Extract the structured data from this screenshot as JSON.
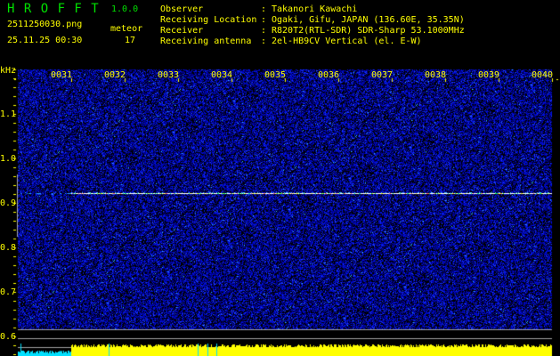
{
  "app": {
    "title": "H R O F F T",
    "version": "1.0.0"
  },
  "file": {
    "name": "2511250030.png",
    "datetime": "25.11.25 00:30"
  },
  "meteor": {
    "label": "meteor",
    "count": "17"
  },
  "info": [
    {
      "label": "Observer",
      "value": "Takanori Kawachi"
    },
    {
      "label": "Receiving Location",
      "value": "Ogaki, Gifu, JAPAN (136.60E, 35.35N)"
    },
    {
      "label": "Receiver",
      "value": "R820T2(RTL-SDR) SDR-Sharp 53.1000MHz"
    },
    {
      "label": "Receiving antenna",
      "value": "2el-HB9CV Vertical (el. E-W)"
    }
  ],
  "info_sep": ":",
  "y_axis": {
    "unit": "kHz",
    "ticks": [
      "1.1",
      "1.0",
      "0.9",
      "0.8",
      "0.7",
      "0.6"
    ]
  },
  "x_axis": {
    "ticks": [
      "0031",
      "0032",
      "0033",
      "0034",
      "0035",
      "0036",
      "0037",
      "0038",
      "0039",
      "0040"
    ]
  },
  "colors": {
    "text": "#ffff00",
    "title": "#00e000",
    "background_noise": "#0000c0",
    "signal": "#ffffff",
    "level_bar": "#ffff00",
    "level_bar_low": "#00e0ff"
  },
  "signal": {
    "frequency_khz": 0.925,
    "start_minute": "0031"
  }
}
